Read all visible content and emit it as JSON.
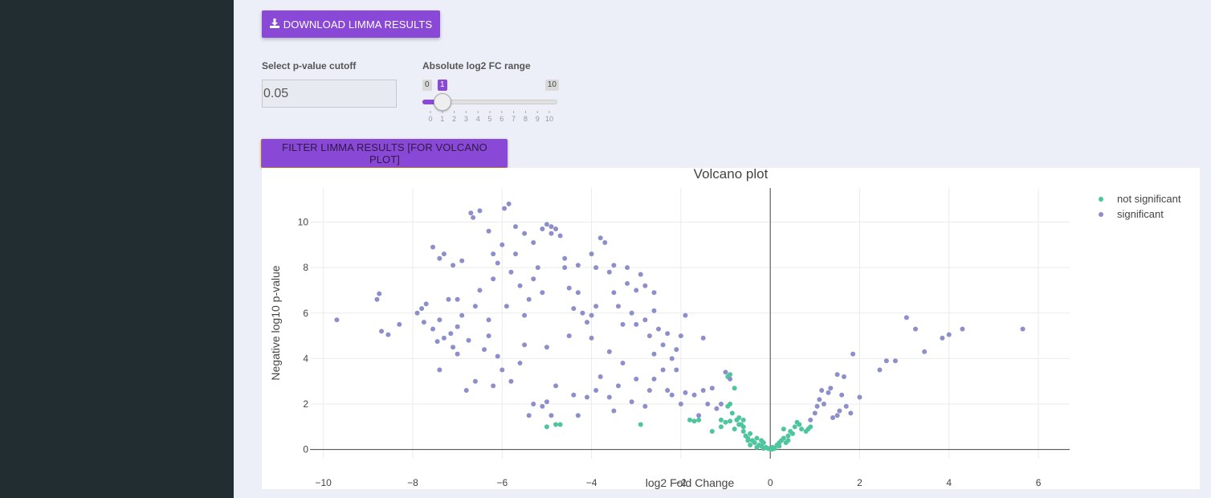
{
  "buttons": {
    "download_label": "DOWNLOAD LIMMA RESULTS",
    "filter_label": "FILTER LIMMA RESULTS [FOR VOLCANO PLOT]"
  },
  "controls": {
    "pvalue_label": "Select p-value cutoff",
    "pvalue_value": "0.05",
    "fc_label": "Absolute log2 FC range",
    "fc_min": "0",
    "fc_max": "10",
    "fc_selected": "1",
    "fc_ticks": [
      "0",
      "1",
      "2",
      "3",
      "4",
      "5",
      "6",
      "7",
      "8",
      "9",
      "10"
    ]
  },
  "colors": {
    "accent": "#8a48d6",
    "sidebar": "#222d32",
    "not_significant": "#4ec59d",
    "significant": "#8c8fca"
  },
  "chart_data": {
    "type": "scatter",
    "title": "Volcano plot",
    "xlabel": "log2 Fold Change",
    "ylabel": "Negative log10 p-value",
    "xlim": [
      -10.3,
      6.7
    ],
    "ylim": [
      -0.4,
      11.5
    ],
    "xticks": [
      -10,
      -8,
      -6,
      -4,
      -2,
      0,
      2,
      4,
      6
    ],
    "yticks": [
      0,
      2,
      4,
      6,
      8,
      10
    ],
    "grid": true,
    "legend_position": "top-right",
    "series": [
      {
        "name": "not significant",
        "color": "#4ec59d",
        "points": [
          [
            -5.0,
            1.0
          ],
          [
            -4.8,
            1.1
          ],
          [
            -4.7,
            1.1
          ],
          [
            -2.9,
            1.1
          ],
          [
            -1.8,
            1.3
          ],
          [
            -1.7,
            1.25
          ],
          [
            -1.6,
            1.3
          ],
          [
            -1.3,
            0.8
          ],
          [
            -1.1,
            1.3
          ],
          [
            -1.0,
            1.2
          ],
          [
            -0.9,
            1.25
          ],
          [
            -0.85,
            1.6
          ],
          [
            -0.8,
            0.9
          ],
          [
            -0.75,
            1.3
          ],
          [
            -0.7,
            1.4
          ],
          [
            -0.65,
            1.1
          ],
          [
            -0.6,
            0.8
          ],
          [
            -0.55,
            0.6
          ],
          [
            -0.5,
            0.5
          ],
          [
            -0.45,
            0.7
          ],
          [
            -0.4,
            0.4
          ],
          [
            -0.35,
            0.3
          ],
          [
            -0.3,
            0.5
          ],
          [
            -0.25,
            0.2
          ],
          [
            -0.2,
            0.15
          ],
          [
            -0.15,
            0.3
          ],
          [
            -0.1,
            0.1
          ],
          [
            -0.05,
            0.05
          ],
          [
            0.0,
            0.02
          ],
          [
            0.05,
            0.1
          ],
          [
            0.1,
            0.05
          ],
          [
            0.15,
            0.2
          ],
          [
            0.2,
            0.3
          ],
          [
            0.25,
            0.4
          ],
          [
            0.3,
            0.5
          ],
          [
            0.35,
            0.3
          ],
          [
            0.4,
            0.6
          ],
          [
            0.45,
            0.8
          ],
          [
            0.5,
            0.7
          ],
          [
            0.55,
            1.0
          ],
          [
            0.6,
            1.2
          ],
          [
            0.65,
            1.1
          ],
          [
            0.7,
            0.9
          ],
          [
            0.8,
            0.8
          ],
          [
            0.85,
            0.9
          ],
          [
            0.9,
            1.0
          ],
          [
            -0.95,
            3.2
          ],
          [
            -0.9,
            3.3
          ],
          [
            -0.8,
            2.7
          ],
          [
            -0.95,
            1.9
          ],
          [
            -0.9,
            2.0
          ],
          [
            -0.7,
            1.1
          ],
          [
            -0.6,
            1.0
          ],
          [
            -0.5,
            0.4
          ],
          [
            -0.2,
            0.4
          ],
          [
            0.3,
            0.9
          ],
          [
            0.4,
            0.4
          ],
          [
            -1.1,
            1.0
          ],
          [
            -0.6,
            1.3
          ],
          [
            -0.45,
            0.2
          ],
          [
            -0.3,
            0.1
          ],
          [
            0.2,
            0.15
          ],
          [
            -0.15,
            0.05
          ],
          [
            0.05,
            0.02
          ]
        ]
      },
      {
        "name": "significant",
        "color": "#8c8fca",
        "points": [
          [
            -9.7,
            5.7
          ],
          [
            -8.8,
            6.6
          ],
          [
            -8.75,
            6.85
          ],
          [
            -8.7,
            5.2
          ],
          [
            -8.55,
            5.05
          ],
          [
            -8.3,
            5.5
          ],
          [
            -7.9,
            6.0
          ],
          [
            -7.8,
            6.2
          ],
          [
            -7.75,
            5.6
          ],
          [
            -7.7,
            6.4
          ],
          [
            -7.55,
            5.3
          ],
          [
            -7.45,
            4.75
          ],
          [
            -7.4,
            5.7
          ],
          [
            -7.3,
            4.9
          ],
          [
            -7.2,
            6.6
          ],
          [
            -7.15,
            5.1
          ],
          [
            -7.1,
            4.5
          ],
          [
            -7.0,
            5.4
          ],
          [
            -7.0,
            6.6
          ],
          [
            -6.9,
            5.9
          ],
          [
            -6.75,
            4.8
          ],
          [
            -6.6,
            6.3
          ],
          [
            -6.5,
            7.0
          ],
          [
            -6.3,
            5.7
          ],
          [
            -6.2,
            7.5
          ],
          [
            -6.1,
            8.2
          ],
          [
            -6.0,
            9.0
          ],
          [
            -5.9,
            6.3
          ],
          [
            -5.8,
            7.8
          ],
          [
            -5.7,
            8.6
          ],
          [
            -5.6,
            7.2
          ],
          [
            -5.5,
            5.9
          ],
          [
            -5.4,
            6.6
          ],
          [
            -5.3,
            7.5
          ],
          [
            -5.2,
            8.0
          ],
          [
            -5.1,
            6.9
          ],
          [
            -5.0,
            9.9
          ],
          [
            -4.9,
            9.8
          ],
          [
            -4.8,
            9.7
          ],
          [
            -4.7,
            9.4
          ],
          [
            -4.6,
            8.0
          ],
          [
            -4.5,
            7.1
          ],
          [
            -4.4,
            6.2
          ],
          [
            -4.3,
            6.9
          ],
          [
            -4.2,
            6.0
          ],
          [
            -4.1,
            5.6
          ],
          [
            -4.0,
            5.9
          ],
          [
            -3.9,
            6.3
          ],
          [
            -3.8,
            9.3
          ],
          [
            -3.7,
            9.1
          ],
          [
            -3.6,
            7.8
          ],
          [
            -3.5,
            6.9
          ],
          [
            -3.4,
            6.3
          ],
          [
            -3.3,
            5.5
          ],
          [
            -3.2,
            8.0
          ],
          [
            -3.1,
            6.0
          ],
          [
            -3.0,
            5.5
          ],
          [
            -2.9,
            7.7
          ],
          [
            -2.8,
            5.7
          ],
          [
            -2.7,
            5.0
          ],
          [
            -2.6,
            6.1
          ],
          [
            -2.5,
            5.3
          ],
          [
            -2.4,
            4.6
          ],
          [
            -2.3,
            5.1
          ],
          [
            -2.2,
            4.0
          ],
          [
            -2.1,
            4.4
          ],
          [
            -2.0,
            5.0
          ],
          [
            -1.9,
            5.9
          ],
          [
            -1.5,
            4.9
          ],
          [
            -7.55,
            8.9
          ],
          [
            -7.4,
            8.4
          ],
          [
            -7.3,
            8.6
          ],
          [
            -7.1,
            8.1
          ],
          [
            -6.9,
            8.3
          ],
          [
            -6.7,
            10.4
          ],
          [
            -6.65,
            10.2
          ],
          [
            -6.5,
            10.5
          ],
          [
            -6.3,
            9.6
          ],
          [
            -6.2,
            8.6
          ],
          [
            -5.95,
            10.6
          ],
          [
            -5.85,
            10.8
          ],
          [
            -5.7,
            9.8
          ],
          [
            -5.5,
            9.5
          ],
          [
            -5.3,
            9.1
          ],
          [
            -5.1,
            9.7
          ],
          [
            -4.9,
            9.5
          ],
          [
            -4.6,
            8.4
          ],
          [
            -4.3,
            8.1
          ],
          [
            -4.0,
            8.6
          ],
          [
            -3.9,
            8.0
          ],
          [
            -3.5,
            8.1
          ],
          [
            -3.2,
            7.3
          ],
          [
            -3.0,
            7.0
          ],
          [
            -2.8,
            7.2
          ],
          [
            -2.6,
            6.9
          ],
          [
            -7.4,
            3.5
          ],
          [
            -7.0,
            4.2
          ],
          [
            -6.8,
            2.6
          ],
          [
            -6.6,
            3.0
          ],
          [
            -6.4,
            4.4
          ],
          [
            -6.2,
            2.8
          ],
          [
            -6.0,
            3.5
          ],
          [
            -5.8,
            3.0
          ],
          [
            -5.6,
            3.8
          ],
          [
            -5.4,
            1.5
          ],
          [
            -5.3,
            2.0
          ],
          [
            -5.1,
            1.9
          ],
          [
            -5.0,
            2.1
          ],
          [
            -4.9,
            1.5
          ],
          [
            -4.8,
            2.8
          ],
          [
            -4.4,
            2.4
          ],
          [
            -4.3,
            1.5
          ],
          [
            -4.1,
            2.3
          ],
          [
            -3.9,
            2.6
          ],
          [
            -3.8,
            3.2
          ],
          [
            -3.6,
            2.3
          ],
          [
            -3.5,
            1.7
          ],
          [
            -3.4,
            2.8
          ],
          [
            -3.3,
            3.8
          ],
          [
            -3.1,
            2.1
          ],
          [
            -3.0,
            3.1
          ],
          [
            -2.8,
            1.9
          ],
          [
            -2.7,
            2.6
          ],
          [
            -2.6,
            3.1
          ],
          [
            -2.4,
            3.5
          ],
          [
            -2.3,
            2.6
          ],
          [
            -2.2,
            2.4
          ],
          [
            -2.0,
            2.0
          ],
          [
            -1.9,
            2.5
          ],
          [
            -1.7,
            2.4
          ],
          [
            -1.6,
            1.5
          ],
          [
            -1.5,
            2.6
          ],
          [
            -1.4,
            2.0
          ],
          [
            -1.3,
            2.7
          ],
          [
            -1.2,
            1.8
          ],
          [
            -1.1,
            2.0
          ],
          [
            -1.0,
            3.4
          ],
          [
            -0.9,
            3.1
          ],
          [
            -2.1,
            3.5
          ],
          [
            -2.6,
            4.2
          ],
          [
            -3.6,
            4.3
          ],
          [
            -4.0,
            4.9
          ],
          [
            -4.5,
            5.0
          ],
          [
            -5.0,
            4.5
          ],
          [
            -5.5,
            4.6
          ],
          [
            -6.1,
            4.1
          ],
          [
            -6.3,
            5.0
          ],
          [
            0.9,
            1.3
          ],
          [
            1.0,
            1.6
          ],
          [
            1.05,
            1.9
          ],
          [
            1.1,
            2.2
          ],
          [
            1.2,
            2.0
          ],
          [
            1.3,
            2.5
          ],
          [
            1.35,
            2.7
          ],
          [
            1.5,
            3.3
          ],
          [
            1.55,
            1.7
          ],
          [
            1.6,
            2.4
          ],
          [
            1.65,
            3.2
          ],
          [
            1.7,
            1.9
          ],
          [
            1.8,
            1.6
          ],
          [
            1.85,
            4.2
          ],
          [
            2.0,
            2.3
          ],
          [
            2.45,
            3.5
          ],
          [
            2.6,
            3.9
          ],
          [
            2.8,
            3.9
          ],
          [
            3.05,
            5.8
          ],
          [
            3.25,
            5.3
          ],
          [
            3.45,
            4.3
          ],
          [
            3.85,
            4.9
          ],
          [
            4.0,
            5.05
          ],
          [
            4.3,
            5.3
          ],
          [
            5.65,
            5.3
          ],
          [
            1.4,
            1.4
          ],
          [
            1.15,
            2.6
          ],
          [
            1.5,
            1.5
          ]
        ]
      }
    ]
  }
}
